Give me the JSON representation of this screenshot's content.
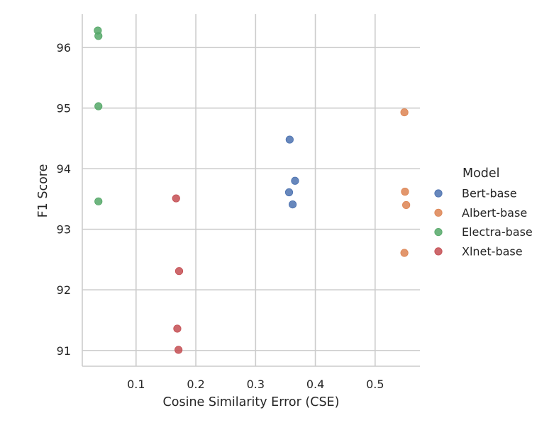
{
  "chart_data": {
    "type": "scatter",
    "xlabel": "Cosine Similarity Error (CSE)",
    "ylabel": "F1 Score",
    "xlim": [
      0.01,
      0.575
    ],
    "ylim": [
      90.74,
      96.55
    ],
    "xticks": [
      0.1,
      0.2,
      0.3,
      0.4,
      0.5
    ],
    "xtick_labels": [
      "0.1",
      "0.2",
      "0.3",
      "0.4",
      "0.5"
    ],
    "yticks": [
      91,
      92,
      93,
      94,
      95,
      96
    ],
    "ytick_labels": [
      "91",
      "92",
      "93",
      "94",
      "95",
      "96"
    ],
    "grid": true,
    "legend": {
      "title": "Model",
      "placement": "right"
    },
    "series": [
      {
        "name": "Bert-base",
        "color": "#4c72b0",
        "points": [
          [
            0.357,
            94.48
          ],
          [
            0.366,
            93.8
          ],
          [
            0.356,
            93.61
          ],
          [
            0.362,
            93.41
          ]
        ]
      },
      {
        "name": "Albert-base",
        "color": "#dd8452",
        "points": [
          [
            0.549,
            94.93
          ],
          [
            0.55,
            93.62
          ],
          [
            0.552,
            93.4
          ],
          [
            0.549,
            92.61
          ]
        ]
      },
      {
        "name": "Electra-base",
        "color": "#55a868",
        "points": [
          [
            0.036,
            96.28
          ],
          [
            0.037,
            96.19
          ],
          [
            0.037,
            95.03
          ],
          [
            0.037,
            93.46
          ]
        ]
      },
      {
        "name": "Xlnet-base",
        "color": "#c44e52",
        "points": [
          [
            0.167,
            93.51
          ],
          [
            0.172,
            92.31
          ],
          [
            0.169,
            91.36
          ],
          [
            0.171,
            91.01
          ]
        ]
      }
    ]
  }
}
